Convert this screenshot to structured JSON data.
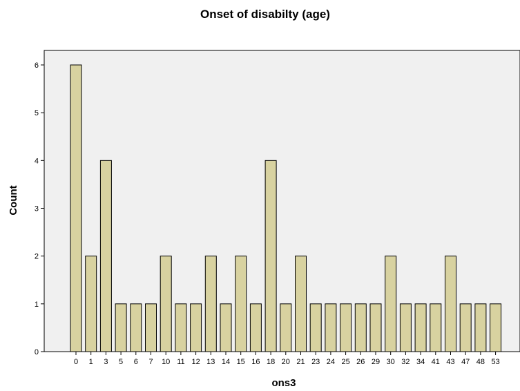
{
  "chart_data": {
    "type": "bar",
    "title": "Onset of disabilty (age)",
    "xlabel": "ons3",
    "ylabel": "Count",
    "categories": [
      "0",
      "1",
      "3",
      "5",
      "6",
      "7",
      "10",
      "11",
      "12",
      "13",
      "14",
      "15",
      "16",
      "18",
      "20",
      "21",
      "23",
      "24",
      "25",
      "26",
      "29",
      "30",
      "32",
      "34",
      "41",
      "43",
      "47",
      "48",
      "53"
    ],
    "values": [
      6,
      2,
      4,
      1,
      1,
      1,
      2,
      1,
      1,
      2,
      1,
      2,
      1,
      4,
      1,
      2,
      1,
      1,
      1,
      1,
      1,
      2,
      1,
      1,
      1,
      2,
      1,
      1,
      1
    ],
    "ylim": [
      0,
      6
    ],
    "yticks": [
      0,
      1,
      2,
      3,
      4,
      5,
      6
    ],
    "grid": false,
    "colors": {
      "bar_fill": "#d8d2a0",
      "bar_stroke": "#000000",
      "plot_background": "#f0f0f0",
      "page_background": "#ffffff"
    }
  }
}
